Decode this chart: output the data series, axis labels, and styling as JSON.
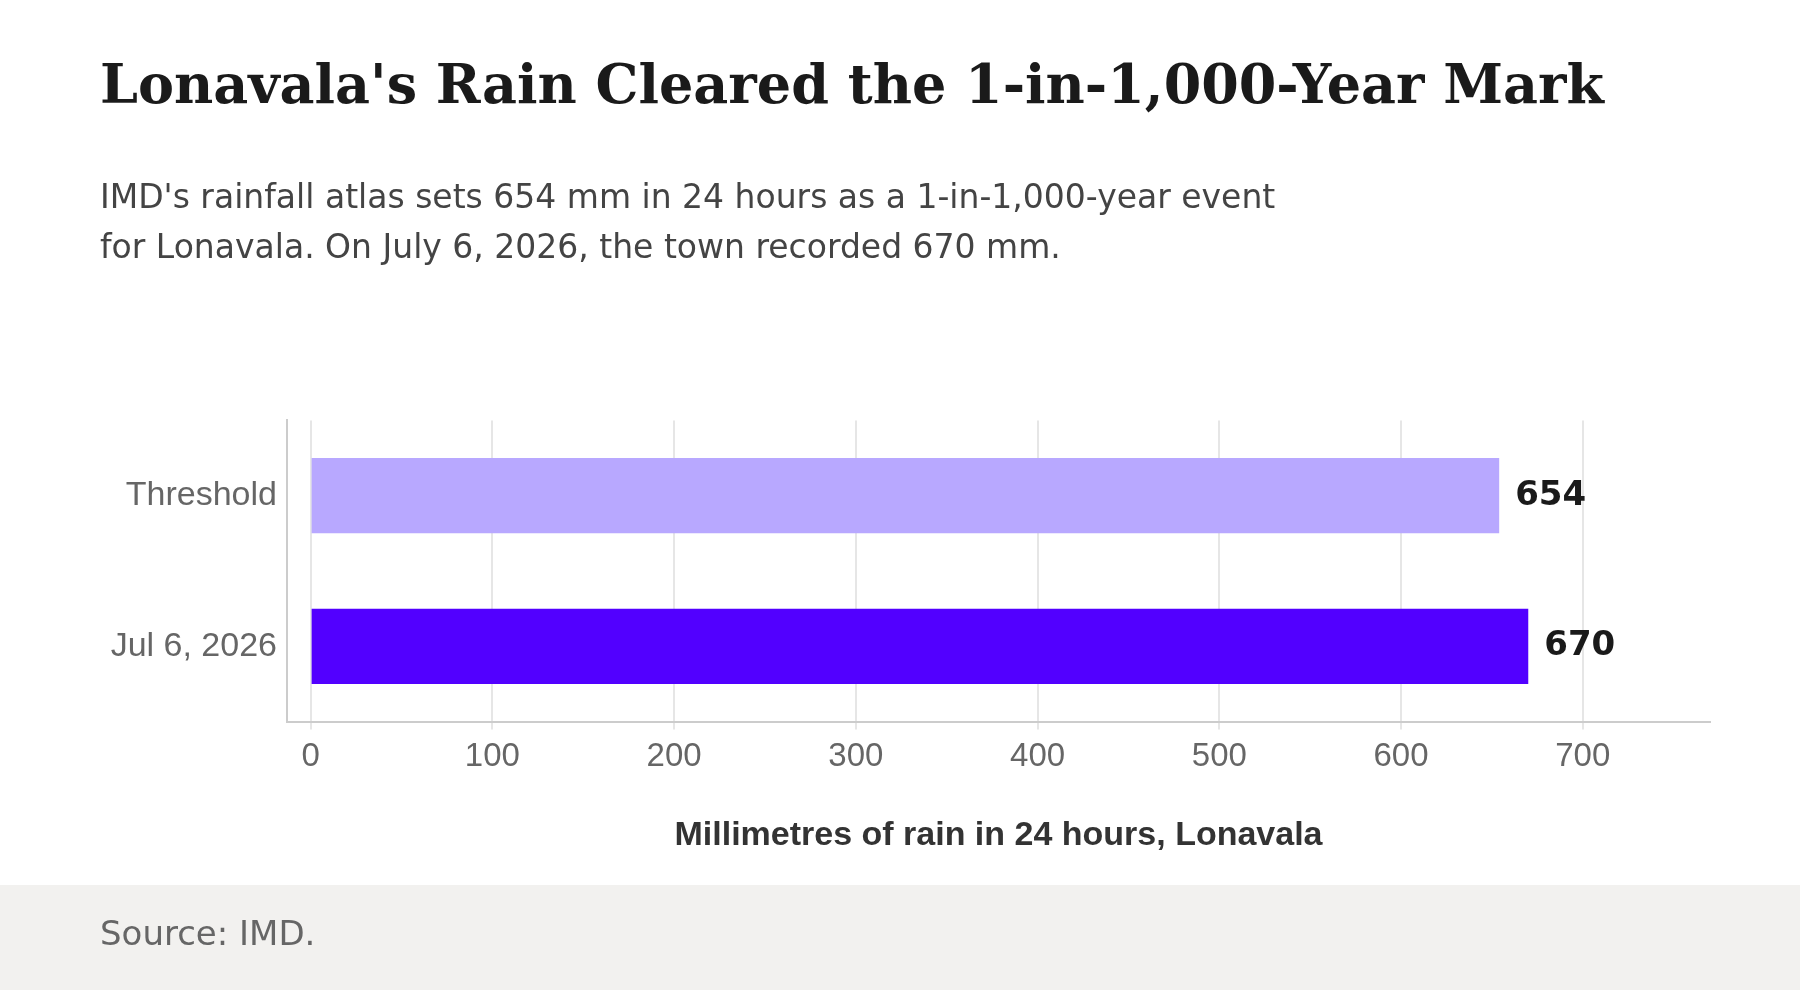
{
  "chart_data": {
    "type": "bar",
    "orientation": "horizontal",
    "title": "Lonavala's Rain Cleared the 1-in-1,000-Year Mark",
    "subtitle": "IMD's rainfall atlas sets 654 mm in 24 hours as a 1-in-1,000-year event for Lonavala. On July 6, 2026, the town recorded 670 mm.",
    "xlabel": "Millimetres of rain in 24 hours, Lonavala",
    "categories": [
      "Threshold",
      "Jul 6, 2026"
    ],
    "values": [
      654,
      670
    ],
    "colors": [
      "#b8a8ff",
      "#5200ff"
    ],
    "xlim": [
      -13,
      770
    ],
    "xticks": [
      0,
      100,
      200,
      300,
      400,
      500,
      600,
      700
    ],
    "grid": "x",
    "legend": false,
    "data_labels": true,
    "annotations": [
      "Source: IMD."
    ]
  }
}
